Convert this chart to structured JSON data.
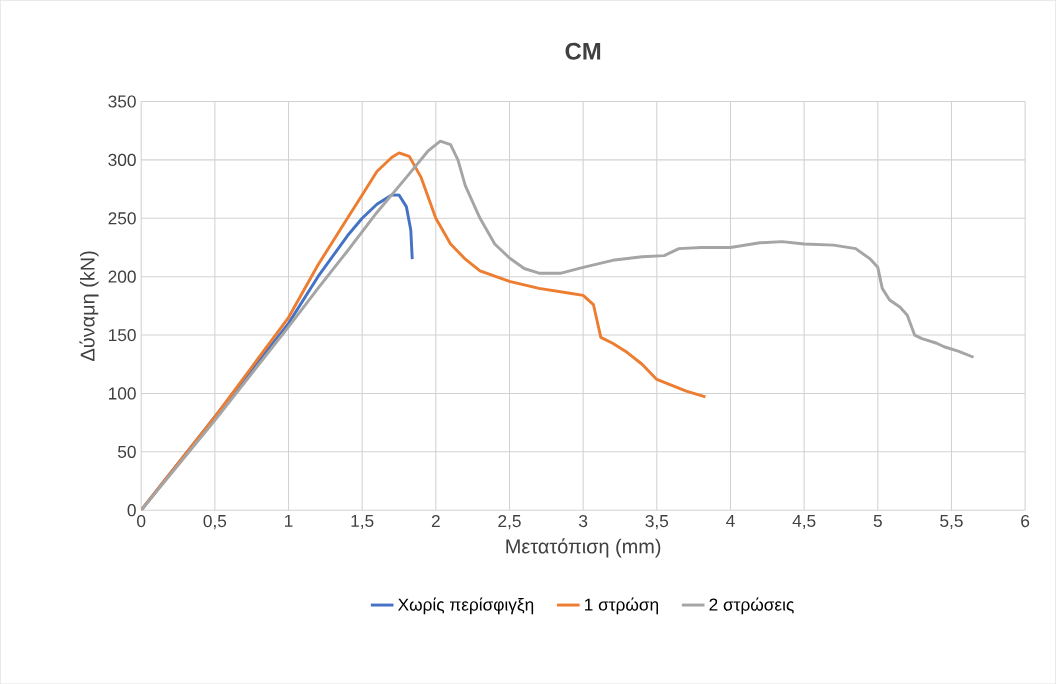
{
  "chart_data": {
    "type": "line",
    "title": "CM",
    "xlabel": "Μετατόπιση (mm)",
    "ylabel": "Δύναμη (kN)",
    "xlim": [
      0,
      6
    ],
    "ylim": [
      0,
      350
    ],
    "xticks": [
      0,
      {
        "value": 0.5,
        "label": "0,5"
      },
      1,
      {
        "value": 1.5,
        "label": "1,5"
      },
      2,
      {
        "value": 2.5,
        "label": "2,5"
      },
      3,
      {
        "value": 3.5,
        "label": "3,5"
      },
      4,
      {
        "value": 4.5,
        "label": "4,5"
      },
      5,
      {
        "value": 5.5,
        "label": "5,5"
      },
      6
    ],
    "yticks": [
      0,
      50,
      100,
      150,
      200,
      250,
      300,
      350
    ],
    "grid": true,
    "legend": "bottom",
    "marker": "none",
    "line_style": "solid",
    "series": [
      {
        "name": "Χωρίς περίσφιγξη",
        "color": "#4472c4",
        "x": [
          0,
          1,
          1.2,
          1.4,
          1.5,
          1.6,
          1.7,
          1.75,
          1.8,
          1.83,
          1.84
        ],
        "values": [
          0,
          160,
          200,
          235,
          250,
          262,
          270,
          270,
          260,
          240,
          215
        ]
      },
      {
        "name": "1 στρώση",
        "color": "#ed7d31",
        "x": [
          0,
          0.5,
          1,
          1.2,
          1.4,
          1.5,
          1.6,
          1.7,
          1.75,
          1.82,
          1.9,
          2.0,
          2.1,
          2.2,
          2.3,
          2.5,
          2.7,
          2.9,
          3.0,
          3.07,
          3.12,
          3.2,
          3.3,
          3.4,
          3.5,
          3.6,
          3.7,
          3.83
        ],
        "values": [
          0,
          80,
          165,
          210,
          250,
          270,
          290,
          302,
          306,
          303,
          285,
          250,
          228,
          215,
          205,
          196,
          190,
          186,
          184,
          176,
          148,
          143,
          135,
          125,
          112,
          107,
          102,
          97
        ]
      },
      {
        "name": "2 στρώσεις",
        "color": "#a5a5a5",
        "x": [
          0,
          0.5,
          1,
          1.2,
          1.4,
          1.6,
          1.8,
          1.95,
          2.03,
          2.1,
          2.15,
          2.2,
          2.3,
          2.4,
          2.5,
          2.6,
          2.7,
          2.85,
          3.0,
          3.2,
          3.4,
          3.55,
          3.65,
          3.8,
          4.0,
          4.2,
          4.35,
          4.5,
          4.7,
          4.85,
          4.95,
          5.0,
          5.03,
          5.08,
          5.15,
          5.2,
          5.25,
          5.3,
          5.4,
          5.45,
          5.55,
          5.65
        ],
        "values": [
          0,
          77,
          157,
          190,
          222,
          255,
          285,
          308,
          316,
          313,
          300,
          278,
          250,
          228,
          216,
          207,
          203,
          203,
          208,
          214,
          217,
          218,
          224,
          225,
          225,
          229,
          230,
          228,
          227,
          224,
          215,
          208,
          190,
          180,
          174,
          167,
          150,
          147,
          143,
          140,
          136,
          131
        ]
      }
    ]
  }
}
